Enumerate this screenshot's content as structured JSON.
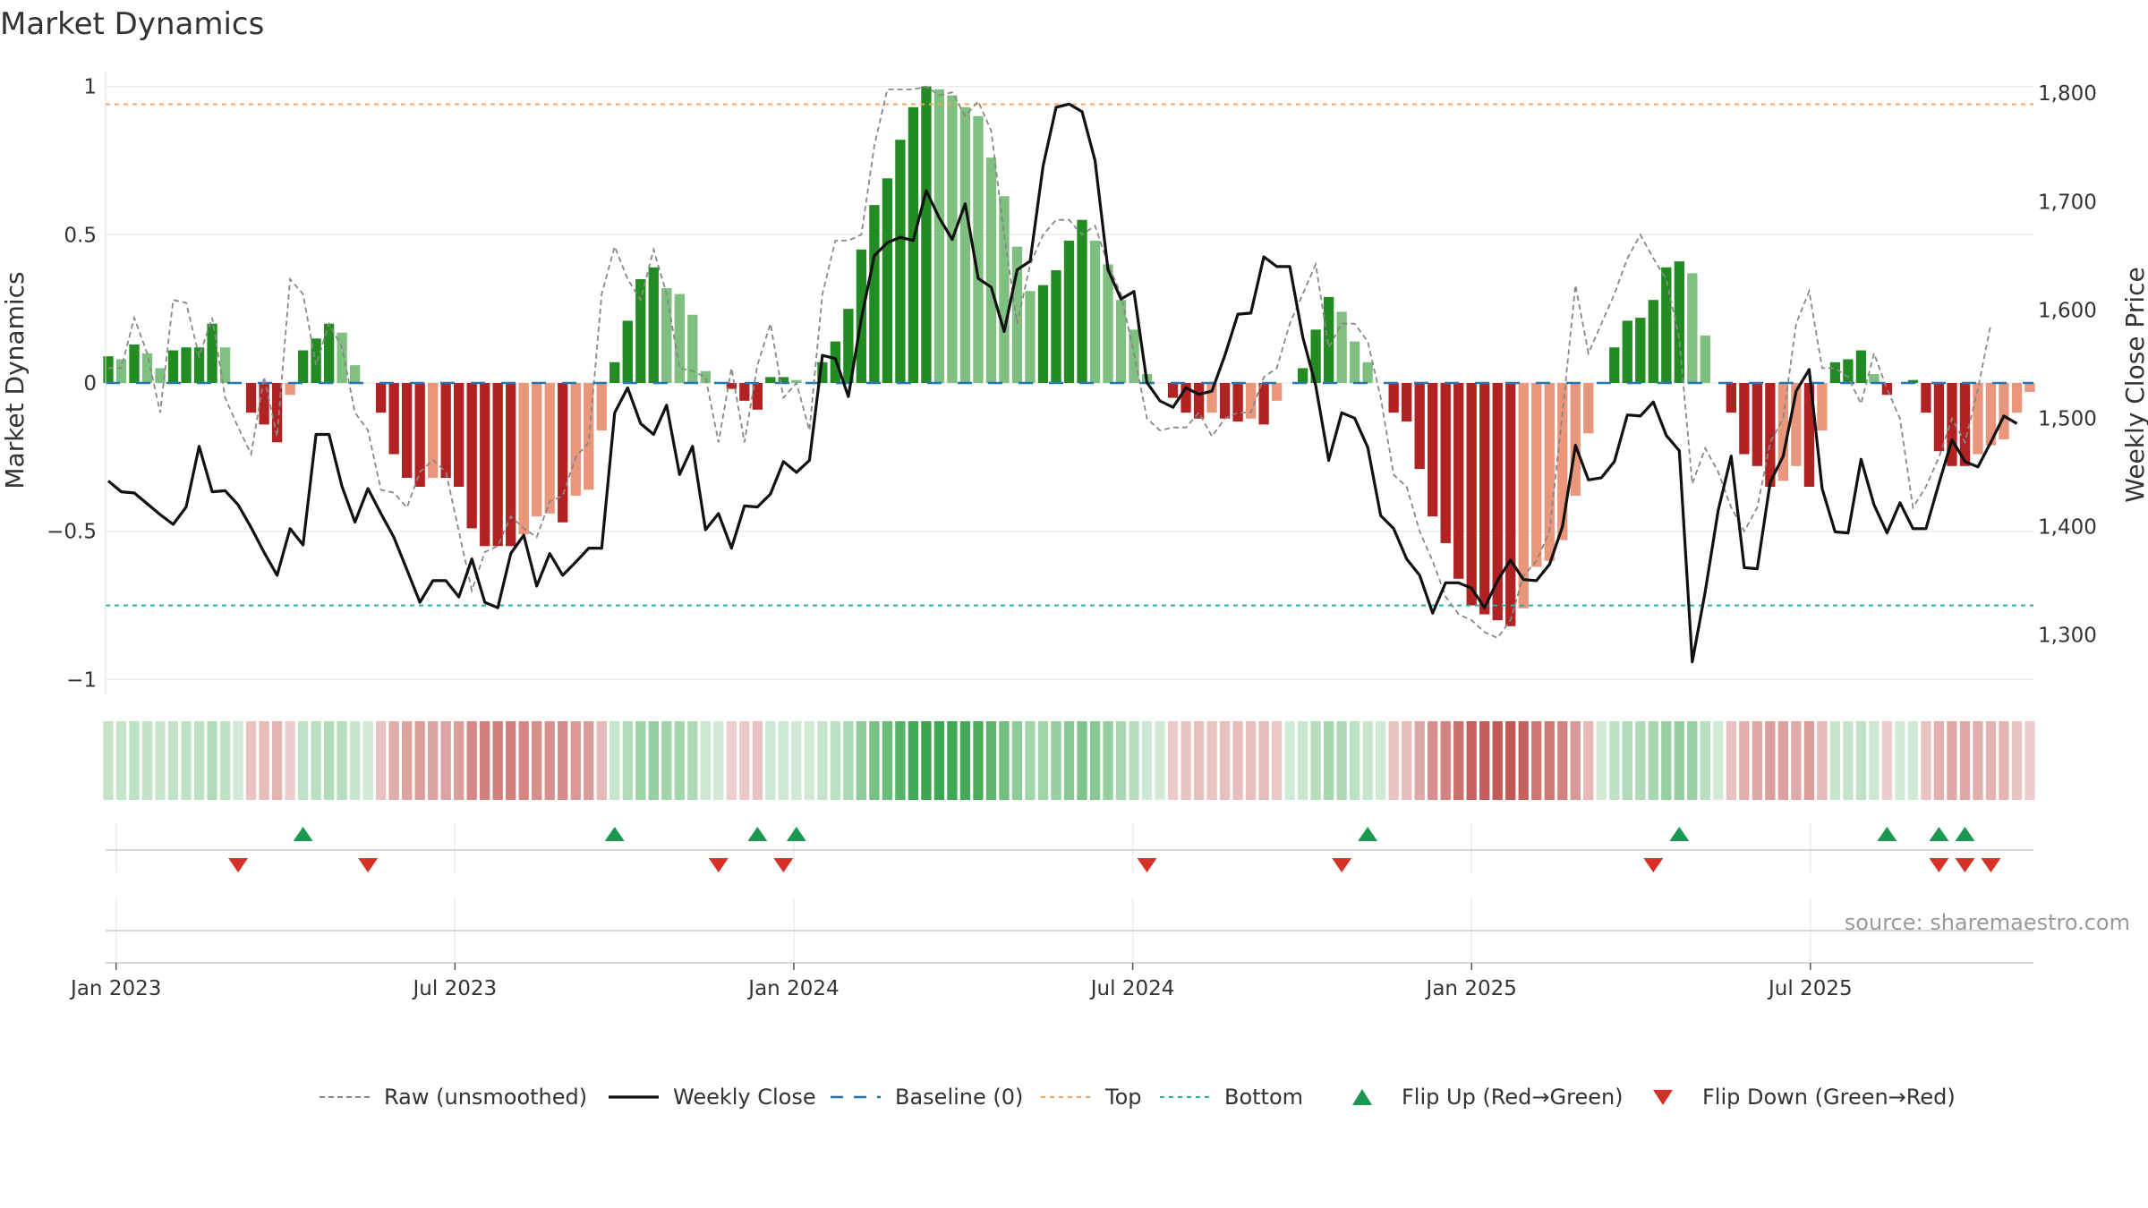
{
  "title": "Market Dynamics",
  "source": "source: sharemaestro.com",
  "colors": {
    "strong_green": "#228b22",
    "light_green": "#7fbf7f",
    "strong_red": "#b22222",
    "light_red": "#e9967a",
    "top_line": "#f4a460",
    "bottom_line": "#20b2aa",
    "baseline": "#1f77b4",
    "flip_up": "#1a9850",
    "flip_down": "#d73027"
  },
  "chart_data": {
    "type": "bar",
    "title": "Market Dynamics",
    "ylabel_left": "Market Dynamics",
    "ylabel_right": "Weekly Close Price",
    "ylim_left": [
      -1.05,
      1.05
    ],
    "ylim_right": [
      1245,
      1820
    ],
    "yticks_left": [
      {
        "value": 1,
        "label": "1"
      },
      {
        "value": 0.5,
        "label": "0.5"
      },
      {
        "value": 0,
        "label": "0"
      },
      {
        "value": -0.5,
        "label": "−0.5"
      },
      {
        "value": -1,
        "label": "−1"
      }
    ],
    "yticks_right": [
      {
        "value": 1800,
        "label": "1,800"
      },
      {
        "value": 1700,
        "label": "1,700"
      },
      {
        "value": 1600,
        "label": "1,600"
      },
      {
        "value": 1500,
        "label": "1,500"
      },
      {
        "value": 1400,
        "label": "1,400"
      },
      {
        "value": 1300,
        "label": "1,300"
      }
    ],
    "x_ticks": [
      "Jan 2023",
      "Jul 2023",
      "Jan 2024",
      "Jul 2024",
      "Jan 2025",
      "Jul 2025"
    ],
    "top_level": 0.94,
    "bottom_level": -0.75,
    "baseline": 0,
    "grid": true,
    "legend_position": "bottom",
    "legend": [
      "Raw (unsmoothed)",
      "Weekly Close",
      "Baseline (0)",
      "Top",
      "Bottom",
      "Flip Up (Red→Green)",
      "Flip Down (Green→Red)"
    ],
    "series": [
      {
        "name": "Market Dynamics",
        "values": [
          0.09,
          0.08,
          0.13,
          0.1,
          0.05,
          0.11,
          0.12,
          0.12,
          0.2,
          0.12,
          0,
          -0.1,
          -0.14,
          -0.2,
          -0.04,
          0.11,
          0.15,
          0.2,
          0.17,
          0.06,
          0,
          -0.1,
          -0.24,
          -0.32,
          -0.35,
          -0.32,
          -0.32,
          -0.35,
          -0.49,
          -0.55,
          -0.55,
          -0.55,
          -0.51,
          -0.45,
          -0.44,
          -0.47,
          -0.38,
          -0.36,
          -0.16,
          0.07,
          0.21,
          0.35,
          0.39,
          0.32,
          0.3,
          0.23,
          0.04,
          0,
          -0.02,
          -0.06,
          -0.09,
          0.02,
          0.02,
          0.01,
          0,
          0.07,
          0.14,
          0.25,
          0.45,
          0.6,
          0.69,
          0.82,
          0.93,
          1.0,
          0.99,
          0.97,
          0.93,
          0.9,
          0.76,
          0.63,
          0.46,
          0.31,
          0.33,
          0.38,
          0.48,
          0.55,
          0.48,
          0.4,
          0.28,
          0.18,
          0.03,
          0,
          -0.05,
          -0.1,
          -0.12,
          -0.1,
          -0.12,
          -0.13,
          -0.12,
          -0.14,
          -0.06,
          0,
          0.05,
          0.18,
          0.29,
          0.24,
          0.14,
          0.07,
          0,
          -0.1,
          -0.13,
          -0.29,
          -0.45,
          -0.54,
          -0.66,
          -0.75,
          -0.78,
          -0.8,
          -0.82,
          -0.76,
          -0.62,
          -0.6,
          -0.53,
          -0.38,
          -0.17,
          0,
          0.12,
          0.21,
          0.22,
          0.28,
          0.39,
          0.41,
          0.37,
          0.16,
          0,
          -0.1,
          -0.24,
          -0.28,
          -0.35,
          -0.33,
          -0.28,
          -0.35,
          -0.16,
          0.07,
          0.08,
          0.11,
          0.03,
          -0.04,
          0,
          0.01,
          -0.1,
          -0.23,
          -0.28,
          -0.28,
          -0.24,
          -0.21,
          -0.19,
          -0.1,
          -0.03
        ]
      },
      {
        "name": "Weekly Close",
        "values": [
          1442,
          1432,
          1431,
          1421,
          1411,
          1402,
          1418,
          1474,
          1432,
          1433,
          1420,
          1399,
          1376,
          1355,
          1398,
          1383,
          1485,
          1485,
          1437,
          1404,
          1435,
          1412,
          1390,
          1360,
          1330,
          1350,
          1350,
          1335,
          1370,
          1330,
          1325,
          1375,
          1392,
          1345,
          1375,
          1355,
          1367,
          1380,
          1380,
          1505,
          1528,
          1495,
          1485,
          1512,
          1448,
          1474,
          1397,
          1412,
          1380,
          1419,
          1418,
          1430,
          1460,
          1450,
          1461,
          1558,
          1555,
          1520,
          1592,
          1650,
          1662,
          1667,
          1664,
          1710,
          1685,
          1665,
          1698,
          1629,
          1621,
          1580,
          1637,
          1645,
          1733,
          1787,
          1790,
          1783,
          1738,
          1637,
          1610,
          1617,
          1533,
          1516,
          1510,
          1528,
          1522,
          1525,
          1558,
          1596,
          1597,
          1649,
          1640,
          1640,
          1575,
          1530,
          1461,
          1505,
          1500,
          1473,
          1410,
          1398,
          1370,
          1355,
          1320,
          1348,
          1348,
          1343,
          1325,
          1350,
          1369,
          1351,
          1350,
          1365,
          1400,
          1475,
          1443,
          1445,
          1460,
          1503,
          1502,
          1515,
          1484,
          1470,
          1275,
          1340,
          1415,
          1465,
          1362,
          1361,
          1441,
          1465,
          1525,
          1545,
          1435,
          1395,
          1394,
          1462,
          1420,
          1394,
          1422,
          1398,
          1398,
          1440,
          1480,
          1460,
          1455,
          1478,
          1502,
          1495
        ]
      },
      {
        "name": "Raw (unsmoothed)",
        "values": [
          0.05,
          0.05,
          0.22,
          0.1,
          -0.1,
          0.28,
          0.27,
          0.09,
          0.22,
          -0.05,
          -0.15,
          -0.24,
          0.02,
          -0.18,
          0.35,
          0.3,
          0.06,
          0.2,
          0.12,
          -0.1,
          -0.16,
          -0.36,
          -0.37,
          -0.42,
          -0.3,
          -0.26,
          -0.3,
          -0.5,
          -0.7,
          -0.57,
          -0.55,
          -0.45,
          -0.49,
          -0.52,
          -0.4,
          -0.38,
          -0.25,
          -0.2,
          0.3,
          0.46,
          0.35,
          0.28,
          0.45,
          0.3,
          0.05,
          0.04,
          0.02,
          -0.2,
          0.05,
          -0.2,
          0.06,
          0.2,
          -0.05,
          0,
          -0.16,
          0.3,
          0.48,
          0.48,
          0.5,
          0.8,
          0.99,
          0.99,
          0.99,
          1.0,
          0.97,
          0.98,
          0.9,
          0.95,
          0.85,
          0.5,
          0.2,
          0.4,
          0.5,
          0.55,
          0.55,
          0.5,
          0.53,
          0.4,
          0.3,
          0.1,
          -0.12,
          -0.16,
          -0.15,
          -0.15,
          -0.1,
          -0.18,
          -0.12,
          -0.1,
          -0.1,
          0.02,
          0.05,
          0.2,
          0.3,
          0.4,
          0.12,
          0.2,
          0.2,
          0.14,
          -0.05,
          -0.31,
          -0.35,
          -0.5,
          -0.6,
          -0.72,
          -0.78,
          -0.8,
          -0.84,
          -0.86,
          -0.8,
          -0.65,
          -0.6,
          -0.5,
          -0.1,
          0.33,
          0.1,
          0.2,
          0.3,
          0.42,
          0.5,
          0.42,
          0.35,
          0.15,
          -0.34,
          -0.22,
          -0.3,
          -0.42,
          -0.5,
          -0.42,
          -0.2,
          -0.12,
          0.2,
          0.31,
          0.05,
          0.05,
          0.02,
          -0.07,
          0.1,
          -0.02,
          -0.12,
          -0.42,
          -0.35,
          -0.25,
          -0.12,
          -0.2,
          -0.02,
          0.2
        ]
      }
    ],
    "band": {
      "values": [
        0.09,
        0.08,
        0.13,
        0.1,
        0.05,
        0.11,
        0.12,
        0.12,
        0.2,
        0.12,
        0,
        -0.1,
        -0.14,
        -0.2,
        -0.04,
        0.11,
        0.15,
        0.2,
        0.17,
        0.06,
        0,
        -0.1,
        -0.24,
        -0.32,
        -0.35,
        -0.32,
        -0.32,
        -0.35,
        -0.49,
        -0.55,
        -0.55,
        -0.55,
        -0.51,
        -0.45,
        -0.44,
        -0.47,
        -0.38,
        -0.36,
        -0.16,
        0.07,
        0.21,
        0.35,
        0.39,
        0.32,
        0.3,
        0.23,
        0.04,
        0,
        -0.02,
        -0.06,
        -0.09,
        0.02,
        0.02,
        0.01,
        0,
        0.07,
        0.14,
        0.25,
        0.45,
        0.6,
        0.69,
        0.82,
        0.93,
        1.0,
        0.99,
        0.97,
        0.93,
        0.9,
        0.76,
        0.63,
        0.46,
        0.31,
        0.33,
        0.38,
        0.48,
        0.55,
        0.48,
        0.4,
        0.28,
        0.18,
        0.03,
        0,
        -0.05,
        -0.1,
        -0.12,
        -0.1,
        -0.12,
        -0.13,
        -0.12,
        -0.14,
        -0.06,
        0,
        0.05,
        0.18,
        0.29,
        0.24,
        0.14,
        0.07,
        0,
        -0.1,
        -0.13,
        -0.29,
        -0.45,
        -0.54,
        -0.66,
        -0.75,
        -0.78,
        -0.8,
        -0.82,
        -0.76,
        -0.62,
        -0.6,
        -0.53,
        -0.38,
        -0.17,
        0,
        0.12,
        0.21,
        0.22,
        0.28,
        0.39,
        0.41,
        0.37,
        0.16,
        0,
        -0.1,
        -0.24,
        -0.28,
        -0.35,
        -0.33,
        -0.28,
        -0.35,
        -0.16,
        0.07,
        0.08,
        0.11,
        0.03,
        -0.04,
        0,
        0.01,
        -0.1,
        -0.23,
        -0.28,
        -0.28,
        -0.24,
        -0.21,
        -0.19,
        -0.1,
        -0.03
      ]
    },
    "flips_up_week_index": [
      15,
      39,
      50,
      53,
      97,
      121,
      137,
      141,
      143
    ],
    "flips_down_week_index": [
      10,
      20,
      47,
      52,
      80,
      95,
      119,
      141,
      143,
      145
    ]
  }
}
